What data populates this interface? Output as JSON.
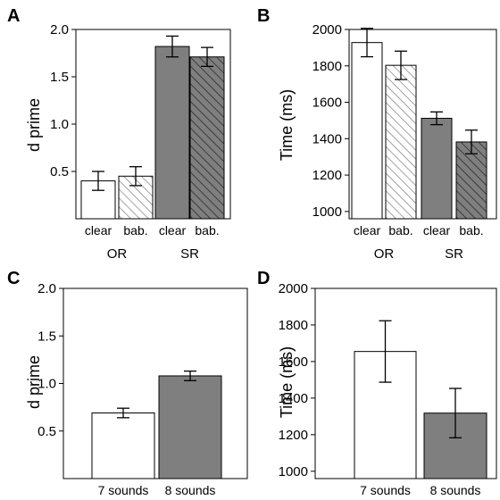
{
  "chart_data": [
    {
      "panel": "A",
      "type": "bar",
      "ylabel": "d prime",
      "ylim": [
        0.0,
        2.0
      ],
      "yticks": [
        0.5,
        1.0,
        1.5,
        2.0
      ],
      "ytick_labels": [
        "0.5",
        "1.0",
        "1.5",
        "2.0"
      ],
      "categories": [
        "clear",
        "bab.",
        "clear",
        "bab."
      ],
      "groups": [
        {
          "label": "OR",
          "span": [
            0,
            1
          ]
        },
        {
          "label": "SR",
          "span": [
            2,
            3
          ]
        }
      ],
      "values": [
        0.4,
        0.45,
        1.82,
        1.71
      ],
      "errors": [
        0.1,
        0.1,
        0.11,
        0.1
      ],
      "styles": [
        "white",
        "hatched-light",
        "gray",
        "hatched-dark"
      ]
    },
    {
      "panel": "B",
      "type": "bar",
      "ylabel": "Time (ms)",
      "ylim": [
        960,
        2000
      ],
      "yticks": [
        1000,
        1200,
        1400,
        1600,
        1800,
        2000
      ],
      "ytick_labels": [
        "1000",
        "1200",
        "1400",
        "1600",
        "1800",
        "2000"
      ],
      "categories": [
        "clear",
        "bab.",
        "clear",
        "bab."
      ],
      "groups": [
        {
          "label": "OR",
          "span": [
            0,
            1
          ]
        },
        {
          "label": "SR",
          "span": [
            2,
            3
          ]
        }
      ],
      "values": [
        1928,
        1803,
        1512,
        1382
      ],
      "errors": [
        78,
        78,
        35,
        65
      ],
      "styles": [
        "white",
        "hatched-light",
        "gray",
        "hatched-dark"
      ]
    },
    {
      "panel": "C",
      "type": "bar",
      "ylabel": "d prime",
      "ylim": [
        0.0,
        2.0
      ],
      "yticks": [
        0.5,
        1.0,
        1.5,
        2.0
      ],
      "ytick_labels": [
        "0.5",
        "1.0",
        "1.5",
        "2.0"
      ],
      "categories": [
        "7 sounds",
        "8 sounds"
      ],
      "groups": [],
      "values": [
        0.69,
        1.08
      ],
      "errors": [
        0.05,
        0.05
      ],
      "styles": [
        "white",
        "gray"
      ]
    },
    {
      "panel": "D",
      "type": "bar",
      "ylabel": "Time (ms)",
      "ylim": [
        960,
        2000
      ],
      "yticks": [
        1000,
        1200,
        1400,
        1600,
        1800,
        2000
      ],
      "ytick_labels": [
        "1000",
        "1200",
        "1400",
        "1600",
        "1800",
        "2000"
      ],
      "categories": [
        "7 sounds",
        "8 sounds"
      ],
      "groups": [],
      "values": [
        1655,
        1318
      ],
      "errors": [
        168,
        135
      ],
      "styles": [
        "white",
        "gray"
      ]
    }
  ],
  "colors": {
    "white_fill": "#ffffff",
    "gray_fill": "#7f7f7f",
    "hatch_light_line": "#7a7a7a",
    "hatch_dark_bg": "#7f7f7f",
    "hatch_dark_line": "#2b2b2b"
  }
}
